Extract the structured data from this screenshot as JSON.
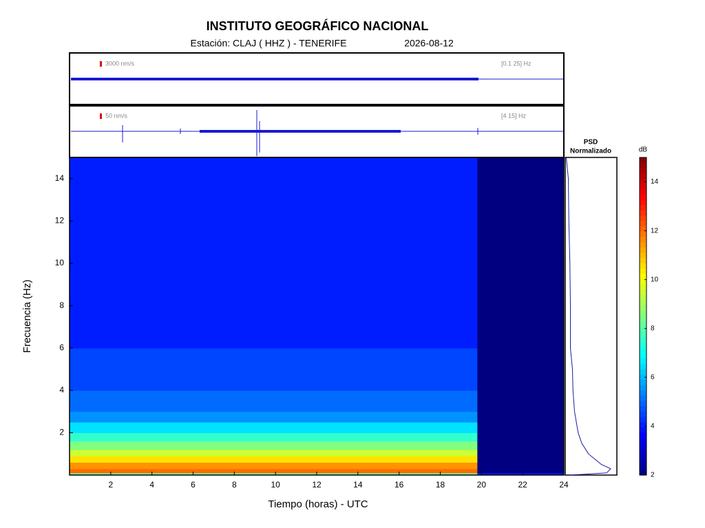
{
  "header": {
    "title": "INSTITUTO GEOGRÁFICO NACIONAL",
    "station": "Estación:  CLAJ ( HHZ ) - TENERIFE",
    "date": "2026-08-12"
  },
  "chart_data": [
    {
      "type": "waveform",
      "scale_label": "3000 nm/s",
      "band_label": "[0.1 25] Hz"
    },
    {
      "type": "waveform",
      "scale_label": "50 nm/s",
      "band_label": "[4 15] Hz"
    },
    {
      "type": "heatmap",
      "xlabel": "Tiempo (horas) - UTC",
      "ylabel": "Frecuencia  (Hz)",
      "xlim": [
        0,
        24
      ],
      "ylim": [
        0,
        15
      ],
      "xticks": [
        2,
        4,
        6,
        8,
        10,
        12,
        14,
        16,
        18,
        20,
        22,
        24
      ],
      "yticks": [
        2,
        4,
        6,
        8,
        10,
        12,
        14
      ],
      "x_bins": [
        0,
        19.8,
        24
      ],
      "y_bins": [
        0,
        0.1,
        0.3,
        0.6,
        0.9,
        1.2,
        1.6,
        2,
        2.5,
        3,
        4,
        6,
        10,
        15
      ],
      "z": [
        [
          8,
          4
        ],
        [
          12,
          2
        ],
        [
          11.5,
          2
        ],
        [
          10.5,
          2
        ],
        [
          9.5,
          2
        ],
        [
          8.5,
          2
        ],
        [
          7.5,
          2
        ],
        [
          6.5,
          2
        ],
        [
          5.5,
          2
        ],
        [
          5,
          2
        ],
        [
          4.5,
          2
        ],
        [
          4,
          2
        ],
        [
          4,
          2
        ]
      ],
      "colormap": "jet",
      "zlim": [
        2,
        15
      ]
    },
    {
      "type": "line",
      "title": "PSD",
      "subtitle": "Normalizado",
      "color": "#1a1aa0",
      "xlim": [
        0,
        1
      ],
      "ylim": [
        0,
        15
      ],
      "frequencies": [
        0,
        0.1,
        0.3,
        0.5,
        0.8,
        1,
        1.5,
        2,
        3,
        4,
        5,
        6,
        8,
        10,
        12,
        14,
        15
      ],
      "values": [
        0.1,
        0.8,
        0.88,
        0.7,
        0.55,
        0.45,
        0.32,
        0.25,
        0.18,
        0.15,
        0.14,
        0.1,
        0.1,
        0.09,
        0.07,
        0.06,
        0.02
      ]
    },
    {
      "type": "colorbar",
      "label": "dB",
      "colormap": "jet",
      "ylim": [
        2,
        15
      ],
      "yticks": [
        2,
        4,
        6,
        8,
        10,
        12,
        14
      ]
    }
  ]
}
